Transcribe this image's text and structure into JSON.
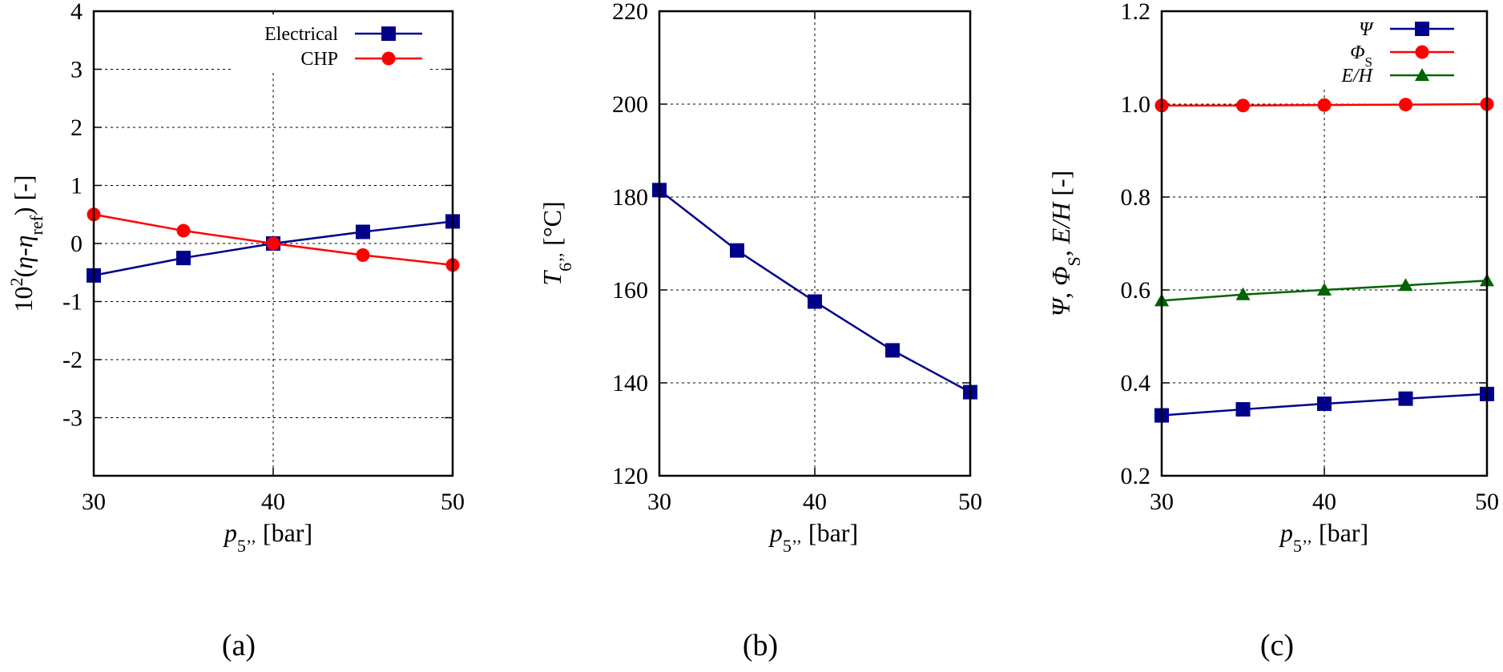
{
  "colors": {
    "blue": "#00008b",
    "red": "#ff0000",
    "green": "#006400"
  },
  "chart_data": [
    {
      "id": "a",
      "type": "line",
      "caption": "(a)",
      "xlabel": {
        "main": "p",
        "sub": "5’’",
        "unit": " [bar]"
      },
      "ylabel": {
        "p1": "10",
        "sup": "2",
        "p2": "(η-η",
        "sub": "ref",
        "p3": ") [-]"
      },
      "xlim": [
        30,
        50
      ],
      "ylim": [
        -4,
        4
      ],
      "xticks": [
        30,
        40,
        50
      ],
      "xtick_labels": [
        "30",
        "40",
        "50"
      ],
      "yticks": [
        -3,
        -2,
        -1,
        0,
        1,
        2,
        3,
        4
      ],
      "ytick_labels": [
        "-3",
        "-2",
        "-1",
        "0",
        "1",
        "2",
        "3",
        "4"
      ],
      "grid": true,
      "legend_position": "top-right",
      "x": [
        30,
        35,
        40,
        45,
        50
      ],
      "series": [
        {
          "name": "Electrical",
          "color": "blue",
          "marker": "square",
          "values": [
            -0.55,
            -0.25,
            0.0,
            0.2,
            0.38
          ]
        },
        {
          "name": "CHP",
          "color": "red",
          "marker": "circle",
          "values": [
            0.5,
            0.22,
            0.0,
            -0.2,
            -0.37
          ]
        }
      ]
    },
    {
      "id": "b",
      "type": "line",
      "caption": "(b)",
      "xlabel": {
        "main": "p",
        "sub": "5’’",
        "unit": " [bar]"
      },
      "ylabel": {
        "main": "T",
        "sub": "6’’",
        "unit": " [°C]"
      },
      "xlim": [
        30,
        50
      ],
      "ylim": [
        120,
        220
      ],
      "xticks": [
        30,
        40,
        50
      ],
      "xtick_labels": [
        "30",
        "40",
        "50"
      ],
      "yticks": [
        120,
        140,
        160,
        180,
        200,
        220
      ],
      "ytick_labels": [
        "120",
        "140",
        "160",
        "180",
        "200",
        "220"
      ],
      "grid": true,
      "x": [
        30,
        35,
        40,
        45,
        50
      ],
      "series": [
        {
          "name": "",
          "color": "blue",
          "marker": "square",
          "values": [
            181.5,
            168.5,
            157.5,
            147.0,
            138.0
          ]
        }
      ]
    },
    {
      "id": "c",
      "type": "line",
      "caption": "(c)",
      "xlabel": {
        "main": "p",
        "sub": "5’’",
        "unit": " [bar]"
      },
      "ylabel": {
        "text": "Ψ, Φ",
        "sub": "S",
        "text2": ", E/H [-]"
      },
      "xlim": [
        30,
        50
      ],
      "ylim": [
        0.2,
        1.2
      ],
      "xticks": [
        30,
        40,
        50
      ],
      "xtick_labels": [
        "30",
        "40",
        "50"
      ],
      "yticks": [
        0.2,
        0.4,
        0.6,
        0.8,
        1.0,
        1.2
      ],
      "ytick_labels": [
        "0.2",
        "0.4",
        "0.6",
        "0.8",
        "1.0",
        "1.2"
      ],
      "grid": true,
      "legend_position": "top-right",
      "x": [
        30,
        35,
        40,
        45,
        50
      ],
      "series": [
        {
          "name": "Ψ",
          "color": "blue",
          "marker": "square",
          "values": [
            0.33,
            0.343,
            0.355,
            0.366,
            0.376
          ]
        },
        {
          "name": "Φ",
          "name_sub": "S",
          "color": "red",
          "marker": "circle",
          "values": [
            0.997,
            0.997,
            0.998,
            0.999,
            1.0
          ]
        },
        {
          "name": "E/H",
          "color": "green",
          "marker": "triangle",
          "values": [
            0.577,
            0.59,
            0.6,
            0.61,
            0.62
          ]
        }
      ]
    }
  ]
}
